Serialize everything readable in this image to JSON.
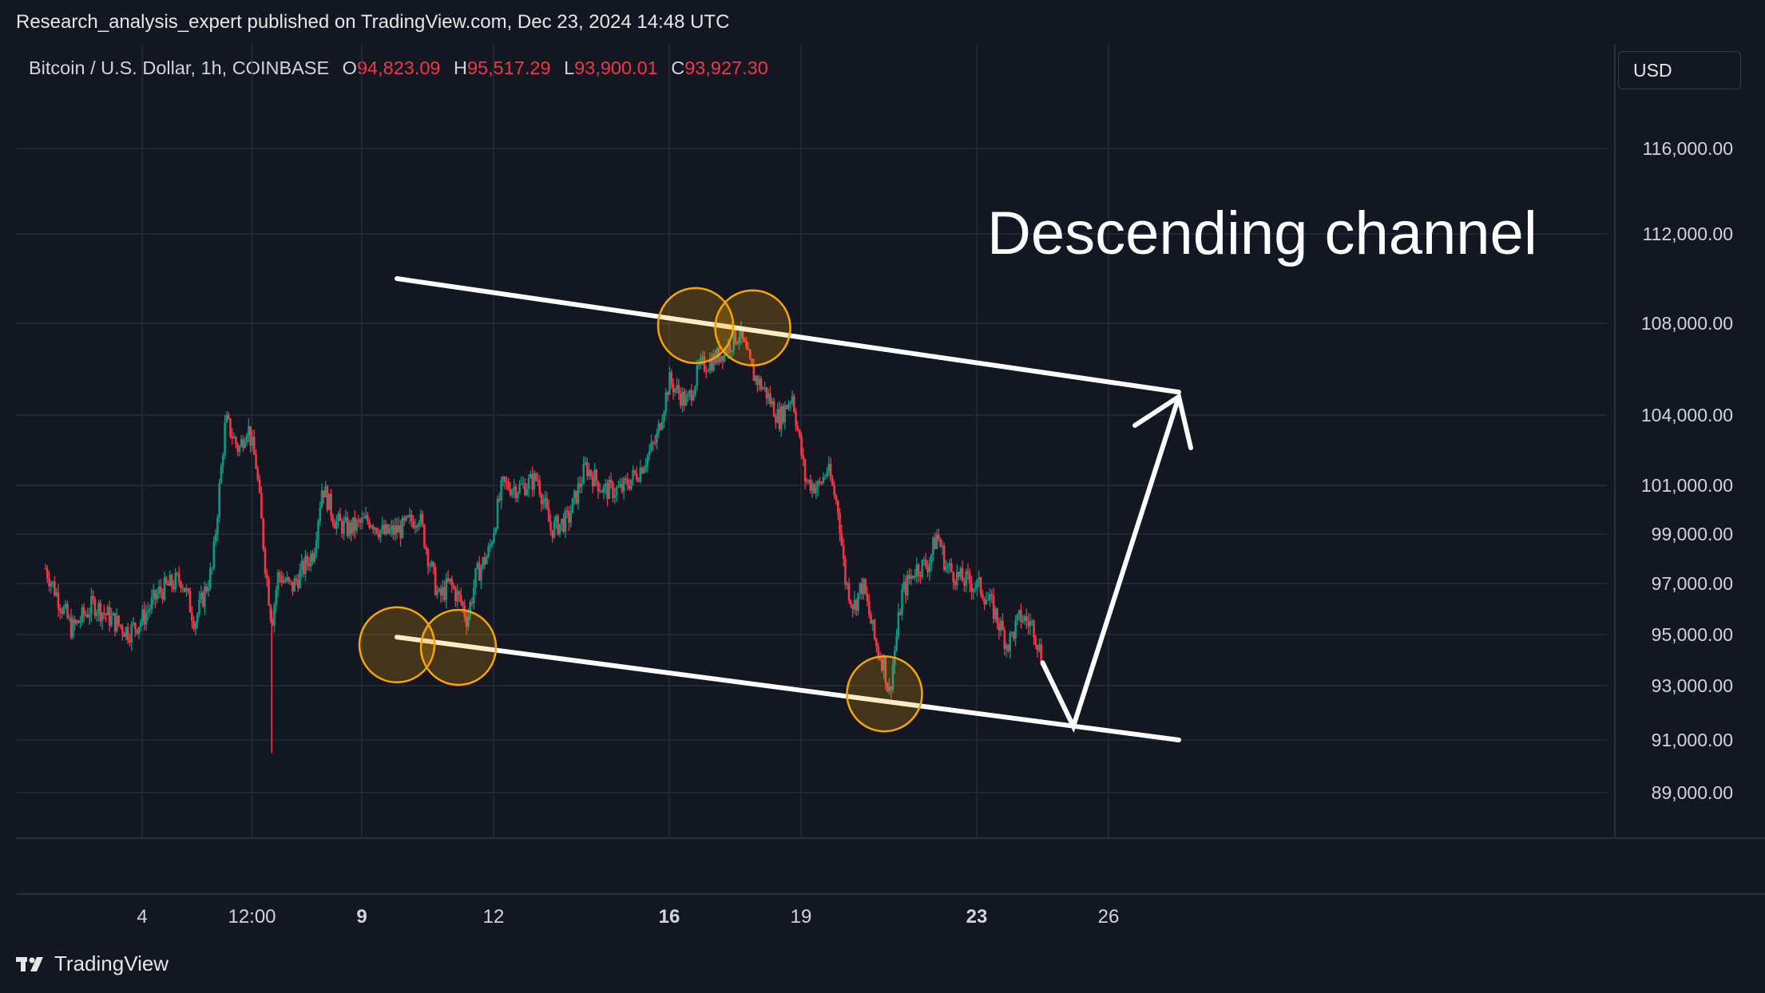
{
  "header": {
    "publisher_line": "Research_analysis_expert published on TradingView.com, Dec 23, 2024 14:48 UTC"
  },
  "legend": {
    "symbol": "Bitcoin / U.S. Dollar, 1h, COINBASE",
    "open_label": "O",
    "open": "94,823.09",
    "high_label": "H",
    "high": "95,517.29",
    "low_label": "L",
    "low": "93,900.01",
    "close_label": "C",
    "close": "93,927.30"
  },
  "currency": "USD",
  "footer": {
    "brand": "TradingView"
  },
  "colors": {
    "background": "#131722",
    "up": "#089981",
    "down": "#f23645",
    "grid": "#262a36",
    "highlight": "#f7a600",
    "annotation": "#ffffff"
  },
  "chart_data": {
    "type": "candlestick",
    "title": "",
    "annotation_text": "Descending channel",
    "y_ticks": [
      "116,000.00",
      "112,000.00",
      "108,000.00",
      "104,000.00",
      "101,000.00",
      "99,000.00",
      "97,000.00",
      "95,000.00",
      "93,000.00",
      "91,000.00",
      "89,000.00"
    ],
    "y_tick_values": [
      116000,
      112000,
      108000,
      104000,
      101000,
      99000,
      97000,
      95000,
      93000,
      91000,
      89000
    ],
    "x_ticks": [
      {
        "label": "4",
        "bold": false,
        "day": 4.0
      },
      {
        "label": "12:00",
        "bold": false,
        "day": 6.5
      },
      {
        "label": "9",
        "bold": true,
        "day": 9.0
      },
      {
        "label": "12",
        "bold": false,
        "day": 12.0
      },
      {
        "label": "16",
        "bold": true,
        "day": 16.0
      },
      {
        "label": "19",
        "bold": false,
        "day": 19.0
      },
      {
        "label": "23",
        "bold": true,
        "day": 23.0
      },
      {
        "label": "26",
        "bold": false,
        "day": 26.0
      }
    ],
    "x_unit": "day of month (Dec 2024)",
    "price_path": [
      [
        1.8,
        97600
      ],
      [
        2.4,
        95200
      ],
      [
        2.9,
        96200
      ],
      [
        3.3,
        95600
      ],
      [
        3.7,
        95100
      ],
      [
        4.0,
        95600
      ],
      [
        4.4,
        96700
      ],
      [
        4.9,
        97200
      ],
      [
        5.2,
        95500
      ],
      [
        5.6,
        97600
      ],
      [
        5.9,
        103800
      ],
      [
        6.2,
        102500
      ],
      [
        6.4,
        103600
      ],
      [
        6.6,
        101800
      ],
      [
        6.8,
        97800
      ],
      [
        6.95,
        95500
      ],
      [
        7.1,
        97400
      ],
      [
        7.4,
        96800
      ],
      [
        7.6,
        97400
      ],
      [
        7.9,
        98300
      ],
      [
        8.1,
        101000
      ],
      [
        8.4,
        99500
      ],
      [
        8.7,
        99200
      ],
      [
        9.2,
        99600
      ],
      [
        9.5,
        99000
      ],
      [
        9.9,
        99200
      ],
      [
        10.3,
        99800
      ],
      [
        10.5,
        98200
      ],
      [
        10.75,
        96400
      ],
      [
        11.0,
        97000
      ],
      [
        11.25,
        96300
      ],
      [
        11.4,
        95600
      ],
      [
        11.6,
        97300
      ],
      [
        11.9,
        98300
      ],
      [
        12.2,
        101000
      ],
      [
        12.6,
        100900
      ],
      [
        13.0,
        101300
      ],
      [
        13.3,
        99200
      ],
      [
        13.7,
        99600
      ],
      [
        14.1,
        101800
      ],
      [
        14.5,
        100800
      ],
      [
        14.9,
        100800
      ],
      [
        15.3,
        101600
      ],
      [
        15.7,
        102900
      ],
      [
        16.0,
        105500
      ],
      [
        16.4,
        104500
      ],
      [
        16.7,
        106100
      ],
      [
        17.0,
        106400
      ],
      [
        17.3,
        106900
      ],
      [
        17.6,
        107600
      ],
      [
        17.9,
        105800
      ],
      [
        18.2,
        105000
      ],
      [
        18.5,
        103800
      ],
      [
        18.8,
        104900
      ],
      [
        19.1,
        101200
      ],
      [
        19.4,
        100900
      ],
      [
        19.6,
        101700
      ],
      [
        19.85,
        100000
      ],
      [
        20.0,
        97200
      ],
      [
        20.2,
        96100
      ],
      [
        20.4,
        97000
      ],
      [
        20.7,
        94600
      ],
      [
        20.9,
        93800
      ],
      [
        21.0,
        92600
      ],
      [
        21.3,
        96600
      ],
      [
        21.6,
        97600
      ],
      [
        21.9,
        97800
      ],
      [
        22.1,
        99000
      ],
      [
        22.3,
        97700
      ],
      [
        22.6,
        97200
      ],
      [
        22.9,
        97000
      ],
      [
        23.1,
        96800
      ],
      [
        23.4,
        95900
      ],
      [
        23.7,
        94600
      ],
      [
        24.0,
        95700
      ],
      [
        24.3,
        95300
      ],
      [
        24.5,
        93900
      ]
    ],
    "highlighted_points": [
      {
        "day": 9.8,
        "price": 94600
      },
      {
        "day": 11.2,
        "price": 94500
      },
      {
        "day": 16.6,
        "price": 107900
      },
      {
        "day": 17.9,
        "price": 107800
      },
      {
        "day": 20.9,
        "price": 92700
      }
    ],
    "channel_upper": [
      [
        9.8,
        110000
      ],
      [
        27.6,
        105000
      ]
    ],
    "channel_lower": [
      [
        9.8,
        94900
      ],
      [
        27.6,
        91000
      ]
    ],
    "projection": [
      [
        24.5,
        93900
      ],
      [
        25.2,
        91500
      ],
      [
        27.6,
        104800
      ]
    ]
  }
}
